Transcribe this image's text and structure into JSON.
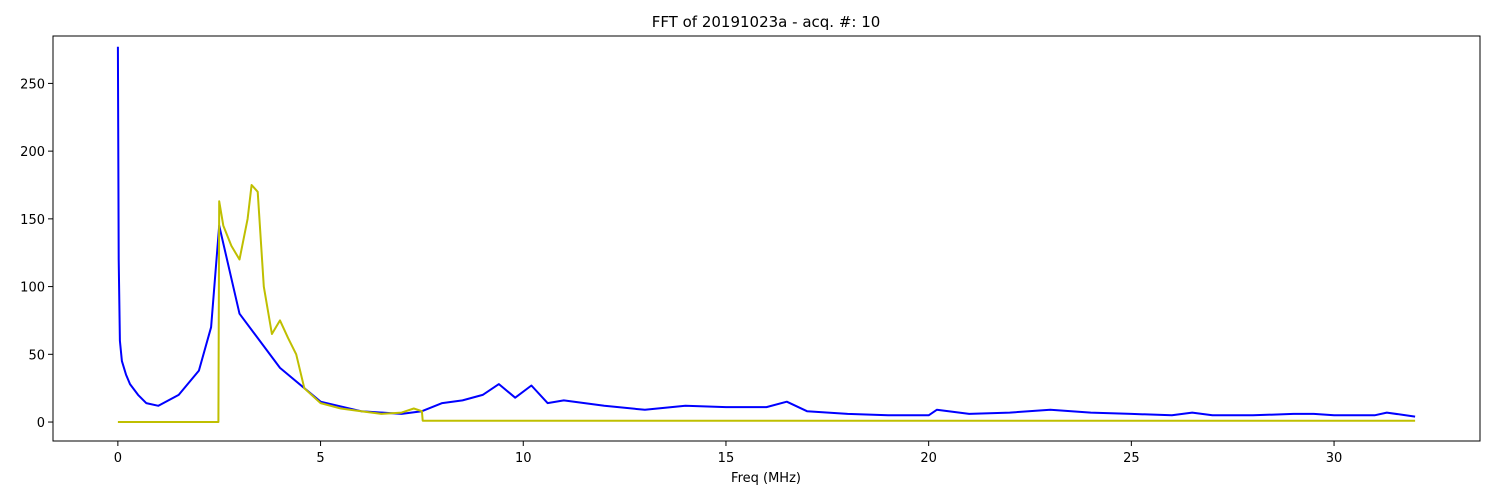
{
  "chart_data": {
    "type": "line",
    "title": "FFT of 20191023a - acq. #: 10",
    "xlabel": "Freq (MHz)",
    "ylabel": "",
    "xlim": [
      -1.6,
      33.6
    ],
    "ylim": [
      -14,
      285
    ],
    "xticks": [
      0,
      5,
      10,
      15,
      20,
      25,
      30
    ],
    "xtick_labels": [
      "0",
      "5",
      "10",
      "15",
      "20",
      "25",
      "30"
    ],
    "yticks": [
      0,
      50,
      100,
      150,
      200,
      250
    ],
    "ytick_labels": [
      "0",
      "50",
      "100",
      "150",
      "200",
      "250"
    ],
    "grid": false,
    "legend": "none",
    "series": [
      {
        "color": "#0000ff",
        "x": [
          0,
          0.02,
          0.05,
          0.1,
          0.2,
          0.3,
          0.5,
          0.7,
          1.0,
          1.5,
          2.0,
          2.3,
          2.5,
          3.0,
          4.0,
          5.0,
          6.0,
          7.0,
          7.5,
          8.0,
          8.5,
          9.0,
          9.4,
          9.8,
          10.2,
          10.6,
          11.0,
          12.0,
          13.0,
          14.0,
          15.0,
          16.0,
          16.5,
          17.0,
          18.0,
          19.0,
          20.0,
          20.2,
          21.0,
          22.0,
          23.0,
          24.0,
          25.0,
          26.0,
          26.5,
          27.0,
          28.0,
          29.0,
          29.5,
          30.0,
          31.0,
          31.3,
          32.0
        ],
        "values": [
          277,
          120,
          60,
          45,
          35,
          28,
          20,
          14,
          12,
          20,
          38,
          70,
          145,
          80,
          40,
          15,
          8,
          6,
          8,
          14,
          16,
          20,
          28,
          18,
          27,
          14,
          16,
          12,
          9,
          12,
          11,
          11,
          15,
          8,
          6,
          5,
          5,
          9,
          6,
          7,
          9,
          7,
          6,
          5,
          7,
          5,
          5,
          6,
          6,
          5,
          5,
          7,
          4
        ]
      },
      {
        "color": "#bfbf00",
        "x": [
          0,
          2.48,
          2.5,
          2.6,
          2.8,
          3.0,
          3.2,
          3.3,
          3.45,
          3.6,
          3.8,
          4.0,
          4.2,
          4.4,
          4.6,
          5.0,
          5.5,
          6.0,
          6.5,
          7.0,
          7.3,
          7.5,
          7.52,
          32.0
        ],
        "values": [
          0,
          0,
          163,
          145,
          130,
          120,
          150,
          175,
          170,
          100,
          65,
          75,
          62,
          50,
          25,
          14,
          10,
          8,
          6,
          7,
          10,
          8,
          1,
          1
        ]
      }
    ]
  }
}
